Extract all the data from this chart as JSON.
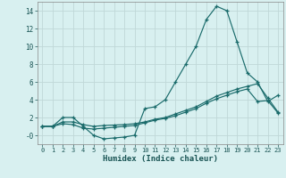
{
  "xlabel": "Humidex (Indice chaleur)",
  "x_values": [
    0,
    1,
    2,
    3,
    4,
    5,
    6,
    7,
    8,
    9,
    10,
    11,
    12,
    13,
    14,
    15,
    16,
    17,
    18,
    19,
    20,
    21,
    22,
    23
  ],
  "line1_y": [
    1,
    1,
    2,
    2,
    1,
    0,
    -0.4,
    -0.3,
    -0.2,
    0,
    3,
    3.2,
    4,
    6,
    8,
    10,
    13,
    14.5,
    14,
    10.5,
    7,
    6,
    3.8,
    4.5
  ],
  "line2_y": [
    1,
    1,
    1.5,
    1.5,
    1.2,
    1.0,
    1.1,
    1.15,
    1.2,
    1.3,
    1.5,
    1.8,
    2.0,
    2.4,
    2.8,
    3.2,
    3.8,
    4.4,
    4.8,
    5.2,
    5.5,
    5.8,
    4.2,
    2.6
  ],
  "line3_y": [
    1,
    1,
    1.3,
    1.2,
    0.8,
    0.7,
    0.8,
    0.9,
    1.0,
    1.1,
    1.4,
    1.7,
    1.9,
    2.2,
    2.6,
    3.0,
    3.6,
    4.1,
    4.5,
    4.9,
    5.2,
    3.8,
    3.9,
    2.5
  ],
  "line_color": "#1a6b6b",
  "bg_color": "#d8f0f0",
  "grid_color": "#c0d8d8",
  "ylim": [
    -1,
    15
  ],
  "xlim": [
    -0.5,
    23.5
  ],
  "yticks": [
    0,
    2,
    4,
    6,
    8,
    10,
    12,
    14
  ],
  "ytick_labels": [
    "-0",
    "2",
    "4",
    "6",
    "8",
    "10",
    "12",
    "14"
  ],
  "xticks": [
    0,
    1,
    2,
    3,
    4,
    5,
    6,
    7,
    8,
    9,
    10,
    11,
    12,
    13,
    14,
    15,
    16,
    17,
    18,
    19,
    20,
    21,
    22,
    23
  ]
}
